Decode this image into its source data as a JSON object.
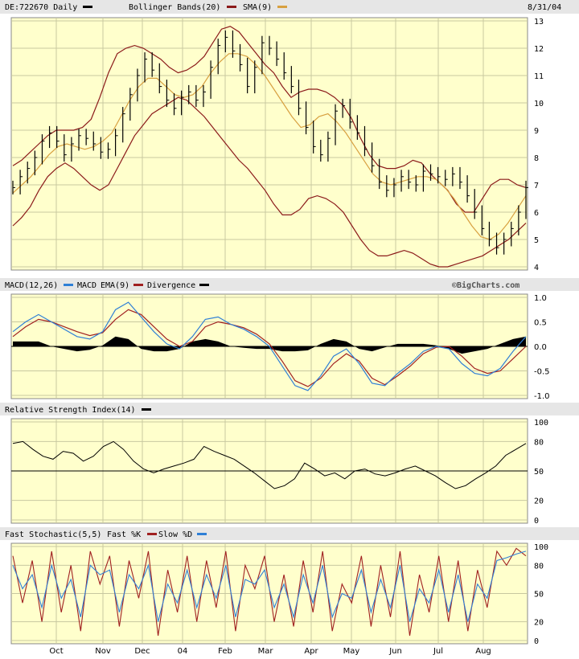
{
  "header": {
    "symbol": "DE:722670 Daily",
    "boll_label": "Bollinger Bands(20)",
    "sma_label": "SMA(9)",
    "date": "8/31/04"
  },
  "colors": {
    "price": "#000000",
    "boll": "#8b1a1a",
    "sma": "#d8a040",
    "macd": "#2f7fd6",
    "ema": "#a02020",
    "panel_bg": "#ffffcc",
    "header_bg": "#e6e6e6",
    "grid": "#c8c8a0"
  },
  "panels": {
    "macd_title": "MACD(12,26)",
    "macd_line": "MACD",
    "macd_ema": "EMA(9)",
    "macd_div": "Divergence",
    "credit": "©BigCharts.com",
    "rsi_title": "Relative Strength Index(14)",
    "stoch_title": "Fast Stochastic(5,5)",
    "stoch_k": "Fast %K",
    "stoch_d": "Slow %D"
  },
  "chart_data": [
    {
      "type": "line",
      "title": "DE:722670 Daily",
      "x_labels": [
        "Oct",
        "Nov",
        "Dec",
        "04",
        "Feb",
        "Mar",
        "Apr",
        "May",
        "Jun",
        "Jul",
        "Aug"
      ],
      "ylim": [
        4,
        13
      ],
      "y_ticks": [
        4,
        5,
        6,
        7,
        8,
        9,
        10,
        11,
        12,
        13
      ],
      "series": [
        {
          "name": "Close",
          "values": [
            6.9,
            7.3,
            7.6,
            8.0,
            8.6,
            8.9,
            8.6,
            8.1,
            8.5,
            8.8,
            8.7,
            8.5,
            8.2,
            8.3,
            8.8,
            9.6,
            10.3,
            11.0,
            11.6,
            11.2,
            10.6,
            10.1,
            9.8,
            10.2,
            10.4,
            10.1,
            10.4,
            11.3,
            12.1,
            12.4,
            11.9,
            11.4,
            10.6,
            11.3,
            12.2,
            12.0,
            11.6,
            11.1,
            10.6,
            9.8,
            9.1,
            8.4,
            8.1,
            8.7,
            9.7,
            9.9,
            9.3,
            8.9,
            8.3,
            7.7,
            7.1,
            6.8,
            7.0,
            7.3,
            7.1,
            7.0,
            7.5,
            7.4,
            7.3,
            7.2,
            7.4,
            7.1,
            6.6,
            6.0,
            5.4,
            5.0,
            4.7,
            5.0,
            5.4,
            6.0,
            6.9
          ]
        },
        {
          "name": "Bollinger Bands(20)",
          "values": [
            7.7,
            7.9,
            8.2,
            8.5,
            8.8,
            9.0,
            9.0,
            9.0,
            9.1,
            9.4,
            10.2,
            11.1,
            11.8,
            12.0,
            12.1,
            12.0,
            11.8,
            11.6,
            11.3,
            11.1,
            11.2,
            11.4,
            11.7,
            12.2,
            12.7,
            12.8,
            12.6,
            12.2,
            11.8,
            11.4,
            11.1,
            10.6,
            10.2,
            10.4,
            10.5,
            10.5,
            10.4,
            10.2,
            9.9,
            9.4,
            8.7,
            8.1,
            7.7,
            7.6,
            7.6,
            7.7,
            7.9,
            7.8,
            7.4,
            7.1,
            6.8,
            6.3,
            6.0,
            6.0,
            6.5,
            7.0,
            7.2,
            7.2,
            7.0,
            6.9
          ]
        },
        {
          "name": "Bollinger Lower",
          "values": [
            5.5,
            5.8,
            6.2,
            6.8,
            7.3,
            7.6,
            7.8,
            7.6,
            7.3,
            7.0,
            6.8,
            7.0,
            7.6,
            8.2,
            8.8,
            9.2,
            9.6,
            9.8,
            10.0,
            10.2,
            10.1,
            9.8,
            9.5,
            9.1,
            8.7,
            8.3,
            7.9,
            7.6,
            7.2,
            6.8,
            6.3,
            5.9,
            5.9,
            6.1,
            6.5,
            6.6,
            6.5,
            6.3,
            6.0,
            5.5,
            5.0,
            4.6,
            4.4,
            4.4,
            4.5,
            4.6,
            4.5,
            4.3,
            4.1,
            4.0,
            4.0,
            4.1,
            4.2,
            4.3,
            4.4,
            4.6,
            4.8,
            5.0,
            5.3,
            5.6
          ]
        },
        {
          "name": "SMA(9)",
          "values": [
            6.7,
            7.0,
            7.3,
            7.7,
            8.1,
            8.4,
            8.5,
            8.4,
            8.3,
            8.4,
            8.6,
            8.9,
            9.5,
            10.1,
            10.6,
            10.9,
            10.9,
            10.6,
            10.3,
            10.2,
            10.3,
            10.6,
            11.1,
            11.5,
            11.8,
            11.8,
            11.7,
            11.4,
            11.0,
            10.5,
            10.0,
            9.5,
            9.1,
            9.2,
            9.5,
            9.6,
            9.3,
            8.9,
            8.4,
            7.9,
            7.4,
            7.1,
            7.0,
            7.1,
            7.2,
            7.3,
            7.3,
            7.2,
            6.9,
            6.5,
            6.0,
            5.5,
            5.1,
            5.0,
            5.2,
            5.6,
            6.1,
            6.6
          ]
        }
      ]
    },
    {
      "type": "line",
      "title": "MACD(12,26)",
      "ylim": [
        -1.0,
        1.0
      ],
      "y_ticks": [
        -1.0,
        -0.5,
        0.0,
        0.5,
        1.0
      ],
      "series": [
        {
          "name": "MACD",
          "values": [
            0.3,
            0.5,
            0.65,
            0.5,
            0.35,
            0.2,
            0.15,
            0.3,
            0.75,
            0.9,
            0.6,
            0.3,
            0.05,
            -0.05,
            0.2,
            0.55,
            0.6,
            0.45,
            0.35,
            0.2,
            0.0,
            -0.4,
            -0.8,
            -0.9,
            -0.6,
            -0.2,
            -0.05,
            -0.35,
            -0.75,
            -0.8,
            -0.55,
            -0.35,
            -0.1,
            0.0,
            -0.05,
            -0.35,
            -0.55,
            -0.6,
            -0.45,
            -0.1,
            0.2
          ]
        },
        {
          "name": "EMA(9)",
          "values": [
            0.2,
            0.4,
            0.55,
            0.5,
            0.4,
            0.3,
            0.22,
            0.28,
            0.55,
            0.75,
            0.65,
            0.4,
            0.15,
            0.0,
            0.1,
            0.4,
            0.5,
            0.45,
            0.38,
            0.25,
            0.05,
            -0.3,
            -0.7,
            -0.82,
            -0.65,
            -0.35,
            -0.15,
            -0.3,
            -0.65,
            -0.78,
            -0.6,
            -0.4,
            -0.15,
            -0.02,
            0.0,
            -0.2,
            -0.45,
            -0.55,
            -0.5,
            -0.25,
            0.0
          ]
        },
        {
          "name": "Divergence",
          "values": [
            0.1,
            0.1,
            0.1,
            0.0,
            -0.05,
            -0.1,
            -0.07,
            0.02,
            0.2,
            0.15,
            -0.05,
            -0.1,
            -0.1,
            -0.05,
            0.1,
            0.15,
            0.1,
            0.0,
            -0.03,
            -0.05,
            -0.05,
            -0.1,
            -0.1,
            -0.08,
            0.05,
            0.15,
            0.1,
            -0.05,
            -0.1,
            -0.02,
            0.05,
            0.05,
            0.05,
            0.02,
            -0.05,
            -0.15,
            -0.1,
            -0.05,
            0.05,
            0.15,
            0.2
          ]
        }
      ]
    },
    {
      "type": "line",
      "title": "Relative Strength Index(14)",
      "ylim": [
        0,
        100
      ],
      "y_ticks": [
        0,
        20,
        50,
        80,
        100
      ],
      "series": [
        {
          "name": "RSI",
          "values": [
            78,
            80,
            72,
            65,
            62,
            70,
            68,
            60,
            65,
            75,
            80,
            72,
            60,
            52,
            48,
            52,
            55,
            58,
            62,
            75,
            70,
            66,
            62,
            55,
            48,
            40,
            32,
            35,
            42,
            58,
            52,
            45,
            48,
            42,
            50,
            52,
            47,
            45,
            48,
            52,
            55,
            50,
            45,
            38,
            32,
            35,
            42,
            48,
            55,
            66,
            72,
            78
          ]
        }
      ]
    },
    {
      "type": "line",
      "title": "Fast Stochastic(5,5)",
      "ylim": [
        0,
        100
      ],
      "y_ticks": [
        0,
        20,
        50,
        80,
        100
      ],
      "series": [
        {
          "name": "Fast %K",
          "values": [
            90,
            40,
            85,
            20,
            95,
            30,
            80,
            10,
            95,
            60,
            90,
            15,
            85,
            45,
            95,
            5,
            75,
            30,
            90,
            20,
            85,
            35,
            95,
            10,
            80,
            55,
            90,
            20,
            70,
            15,
            85,
            30,
            95,
            10,
            60,
            40,
            90,
            15,
            80,
            25,
            95,
            5,
            70,
            30,
            90,
            20,
            85,
            10,
            75,
            35,
            95,
            80,
            98,
            90
          ]
        },
        {
          "name": "Slow %D",
          "values": [
            80,
            55,
            70,
            35,
            80,
            45,
            65,
            25,
            80,
            70,
            75,
            30,
            70,
            55,
            80,
            20,
            60,
            40,
            75,
            35,
            70,
            45,
            80,
            25,
            65,
            60,
            75,
            35,
            60,
            25,
            70,
            40,
            80,
            25,
            50,
            45,
            75,
            30,
            65,
            35,
            80,
            20,
            55,
            40,
            75,
            30,
            70,
            20,
            60,
            45,
            85,
            88,
            92,
            95
          ]
        }
      ]
    }
  ],
  "x_labels": [
    "Oct",
    "Nov",
    "Dec",
    "04",
    "Feb",
    "Mar",
    "Apr",
    "May",
    "Jun",
    "Jul",
    "Aug"
  ]
}
